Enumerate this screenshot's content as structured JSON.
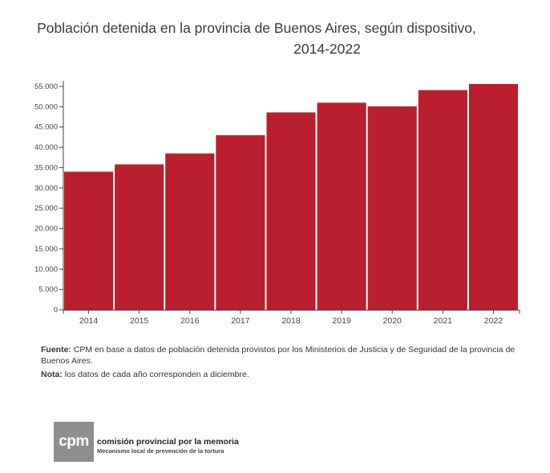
{
  "title_line1": "Población detenida en la provincia de Buenos Aires, según dispositivo,",
  "title_line2": "2014-2022",
  "chart_data": {
    "type": "bar",
    "categories": [
      "2014",
      "2015",
      "2016",
      "2017",
      "2018",
      "2019",
      "2020",
      "2021",
      "2022"
    ],
    "values": [
      34000,
      35800,
      38500,
      43000,
      48600,
      51000,
      50100,
      54100,
      55600
    ],
    "ylim": [
      0,
      55000
    ],
    "yticks": [
      "0",
      "5.000",
      "10.000",
      "15.000",
      "20.000",
      "25.000",
      "30.000",
      "35.000",
      "40.000",
      "45.000",
      "50.000",
      "55.000"
    ],
    "bar_color": "#bb1e2d",
    "grid": false
  },
  "notes": {
    "fuente_label": "Fuente:",
    "fuente_text": " CPM en base a datos de población detenida provistos por los Ministerios de Justicia y de Seguridad de la provincia de Buenos Aires.",
    "nota_label": "Nota:",
    "nota_text": " los datos de cada año corresponden a diciembre."
  },
  "logo": {
    "mark": "cpm",
    "name": "comisión provincial por la memoria",
    "subtitle": "Mecanismo local de prevención de la tortura"
  }
}
